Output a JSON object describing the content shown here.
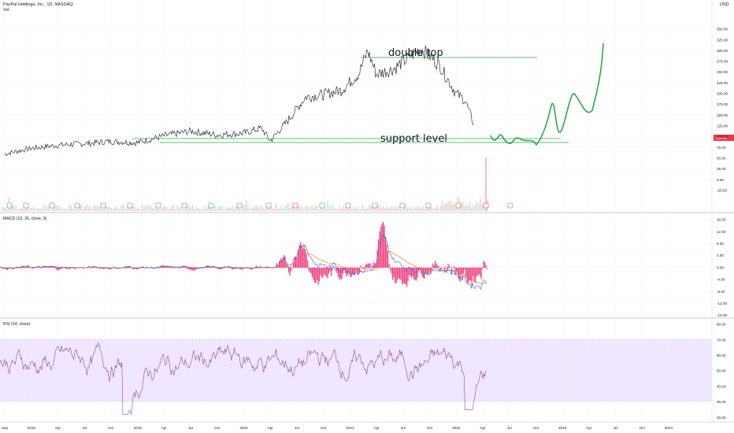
{
  "header": {
    "symbol_line": "PayPal Holdings, Inc., 1D, NASDAQ",
    "vol_label": "Vol",
    "currency": "USD"
  },
  "macd_title": "MACD (12, 26, close, 9)",
  "rsi_title": "RSI (14, close)",
  "price_badge": "128.85",
  "time_axis": [
    "Sep",
    "2018",
    "Apr",
    "Jul",
    "Oct",
    "2019",
    "Apr",
    "Jul",
    "Oct",
    "2020",
    "Apr",
    "Jul",
    "Oct",
    "2021",
    "Apr",
    "Jul",
    "Oct",
    "2022",
    "Apr",
    "Jul",
    "Oct",
    "2023",
    "Apr",
    "Jul",
    "Oct",
    "2024"
  ],
  "price_axis": [
    "350.00",
    "325.00",
    "300.00",
    "275.00",
    "250.00",
    "225.00",
    "200.00",
    "175.00",
    "150.00",
    "125.00",
    "100.00",
    "75.00",
    "50.00",
    "25.00",
    "0.00",
    "-25.00"
  ],
  "macd_axis": [
    "16.00",
    "12.00",
    "8.00",
    "4.00",
    "0.00",
    "-4.00",
    "-8.00",
    "-12.00",
    "-16.00"
  ],
  "rsi_axis": [
    "80.00",
    "70.00",
    "60.00",
    "50.00",
    "40.00",
    "30.00",
    "20.00"
  ],
  "annotations": {
    "double_top": "double top",
    "support": "support level"
  },
  "colors": {
    "price": "#131722",
    "green": "#2ea84a",
    "macd": "#2962ff",
    "signal": "#ff6d00",
    "hist": "#f23f7f",
    "rsi": "#8e44ad",
    "rsi_band": "#f0e6ff"
  },
  "chart_data": [
    {
      "type": "line",
      "title": "PayPal Holdings, Inc., 1D, NASDAQ",
      "x": [
        "2017-09",
        "2017-12",
        "2018-03",
        "2018-06",
        "2018-09",
        "2018-12",
        "2019-03",
        "2019-06",
        "2019-09",
        "2019-12",
        "2020-02",
        "2020-03",
        "2020-05",
        "2020-07",
        "2020-09",
        "2020-11",
        "2021-01",
        "2021-02",
        "2021-03",
        "2021-05",
        "2021-07",
        "2021-08",
        "2021-10",
        "2021-12",
        "2022-01",
        "2022-02"
      ],
      "series": [
        {
          "values": [
            60,
            73,
            80,
            84,
            89,
            86,
            102,
            113,
            104,
            108,
            120,
            90,
            138,
            192,
            198,
            208,
            246,
            300,
            245,
            258,
            290,
            305,
            270,
            200,
            185,
            128.85
          ]
        }
      ],
      "ylim": [
        -25,
        350
      ],
      "annotations": [
        "double top",
        "support level"
      ]
    },
    {
      "type": "line",
      "title": "MACD (12, 26, close, 9)",
      "ylim": [
        -16,
        16
      ]
    },
    {
      "type": "line",
      "title": "RSI (14, close)",
      "ylim": [
        20,
        80
      ]
    }
  ]
}
